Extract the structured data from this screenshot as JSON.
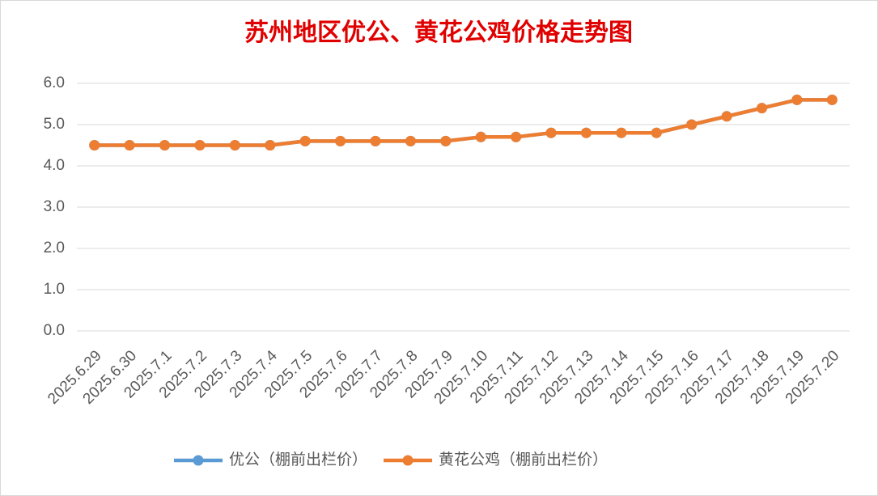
{
  "chart_data": {
    "type": "line",
    "title": "苏州地区优公、黄花公鸡价格走势图",
    "categories": [
      "2025.6.29",
      "2025.6.30",
      "2025.7.1",
      "2025.7.2",
      "2025.7.3",
      "2025.7.4",
      "2025.7.5",
      "2025.7.6",
      "2025.7.7",
      "2025.7.8",
      "2025.7.9",
      "2025.7.10",
      "2025.7.11",
      "2025.7.12",
      "2025.7.13",
      "2025.7.14",
      "2025.7.15",
      "2025.7.16",
      "2025.7.17",
      "2025.7.18",
      "2025.7.19",
      "2025.7.20"
    ],
    "series": [
      {
        "name": "优公（棚前出栏价）",
        "color": "#5b9bd5",
        "values": [
          4.5,
          4.5,
          4.5,
          4.5,
          4.5,
          4.5,
          4.6,
          4.6,
          4.6,
          4.6,
          4.6,
          4.7,
          4.7,
          4.8,
          4.8,
          4.8,
          4.8,
          5.0,
          5.2,
          5.4,
          5.6,
          5.6
        ]
      },
      {
        "name": "黄花公鸡（棚前出栏价）",
        "color": "#ed7d31",
        "values": [
          4.5,
          4.5,
          4.5,
          4.5,
          4.5,
          4.5,
          4.6,
          4.6,
          4.6,
          4.6,
          4.6,
          4.7,
          4.7,
          4.8,
          4.8,
          4.8,
          4.8,
          5.0,
          5.2,
          5.4,
          5.6,
          5.6
        ]
      }
    ],
    "ylim": [
      0,
      6
    ],
    "yticks": [
      {
        "value": 0,
        "label": "0.0"
      },
      {
        "value": 1,
        "label": "1.0"
      },
      {
        "value": 2,
        "label": "2.0"
      },
      {
        "value": 3,
        "label": "3.0"
      },
      {
        "value": 4,
        "label": "4.0"
      },
      {
        "value": 5,
        "label": "5.0"
      },
      {
        "value": 6,
        "label": "6.0"
      }
    ],
    "grid": true,
    "legend": "bottom"
  }
}
